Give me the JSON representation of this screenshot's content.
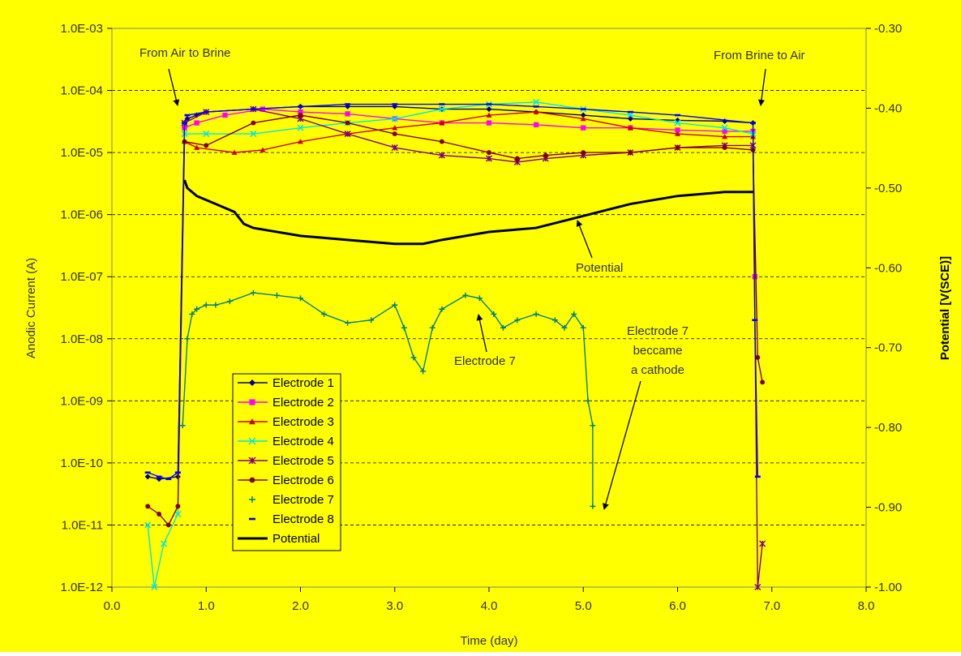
{
  "chart_data": {
    "type": "scatter",
    "title": "",
    "xlabel": "Time (day)",
    "ylabel_left": "Anodic Current  (A)",
    "ylabel_right": "Potential  [V(SCE)]",
    "xlim": [
      0,
      8
    ],
    "ylim_left": [
      1e-12,
      0.001
    ],
    "yscale_left": "log",
    "ylim_right": [
      -1.0,
      -0.3
    ],
    "x_ticks": [
      "0.0",
      "1.0",
      "2.0",
      "3.0",
      "4.0",
      "5.0",
      "6.0",
      "7.0",
      "8.0"
    ],
    "y_left_ticks": [
      "1.0E-03",
      "1.0E-04",
      "1.0E-05",
      "1.0E-06",
      "1.0E-07",
      "1.0E-08",
      "1.0E-09",
      "1.0E-10",
      "1.0E-11",
      "1.0E-12"
    ],
    "y_right_ticks": [
      "-0.30",
      "-0.40",
      "-0.50",
      "-0.60",
      "-0.70",
      "-0.80",
      "-0.90",
      "-1.00"
    ],
    "grid": "horizontal dashed",
    "background": "#ffff00",
    "legend_position": "lower-left",
    "series": [
      {
        "name": "Electrode 1",
        "axis": "left",
        "color": "#00008b",
        "marker": "diamond",
        "x": [
          0.38,
          0.5,
          0.7,
          0.77,
          0.8,
          0.9,
          1.0,
          1.5,
          2.0,
          2.5,
          3.0,
          3.5,
          4.0,
          4.5,
          5.0,
          5.5,
          6.0,
          6.5,
          6.8
        ],
        "y": [
          6e-11,
          5.5e-11,
          6e-11,
          2.5e-05,
          3.5e-05,
          4e-05,
          4.5e-05,
          5e-05,
          5.5e-05,
          5.5e-05,
          5.5e-05,
          5e-05,
          5e-05,
          4.5e-05,
          4e-05,
          3.5e-05,
          3.3e-05,
          3.2e-05,
          3e-05
        ]
      },
      {
        "name": "Electrode 2",
        "axis": "left",
        "color": "#ff00ff",
        "marker": "square",
        "x": [
          0.77,
          0.9,
          1.2,
          1.6,
          2.0,
          2.5,
          3.0,
          3.5,
          4.0,
          4.5,
          5.0,
          5.5,
          6.0,
          6.5,
          6.8,
          6.82
        ],
        "y": [
          2.5e-05,
          3e-05,
          4e-05,
          5e-05,
          4.5e-05,
          4.2e-05,
          3.5e-05,
          3e-05,
          3e-05,
          2.8e-05,
          2.5e-05,
          2.5e-05,
          2.3e-05,
          2.2e-05,
          2.2e-05,
          1e-07
        ]
      },
      {
        "name": "Electrode 3",
        "axis": "left",
        "color": "#cc0000",
        "marker": "triangle",
        "x": [
          0.77,
          0.9,
          1.3,
          1.6,
          2.0,
          2.5,
          3.0,
          3.5,
          4.0,
          4.5,
          5.0,
          5.5,
          6.0,
          6.5,
          6.8
        ],
        "y": [
          1.5e-05,
          1.2e-05,
          1e-05,
          1.1e-05,
          1.5e-05,
          2e-05,
          2.5e-05,
          3e-05,
          4e-05,
          4.5e-05,
          3.5e-05,
          2.5e-05,
          2e-05,
          1.8e-05,
          1.8e-05
        ]
      },
      {
        "name": "Electrode 4",
        "axis": "left",
        "color": "#00e5e5",
        "marker": "x",
        "x": [
          0.38,
          0.45,
          0.55,
          0.7,
          0.77,
          1.0,
          1.5,
          2.0,
          2.5,
          3.0,
          3.5,
          4.0,
          4.5,
          5.0,
          5.5,
          6.0,
          6.5,
          6.8
        ],
        "y": [
          1e-11,
          1e-12,
          5e-12,
          1.5e-11,
          2e-05,
          2e-05,
          2e-05,
          2.5e-05,
          3e-05,
          3.5e-05,
          5e-05,
          6e-05,
          6.5e-05,
          5e-05,
          4e-05,
          3e-05,
          2.5e-05,
          2e-05
        ]
      },
      {
        "name": "Electrode 5",
        "axis": "left",
        "color": "#800080",
        "marker": "star",
        "x": [
          0.77,
          1.0,
          1.5,
          2.0,
          2.5,
          3.0,
          3.5,
          4.0,
          4.3,
          4.6,
          5.0,
          5.5,
          6.0,
          6.5,
          6.8,
          6.85,
          6.9
        ],
        "y": [
          3e-05,
          4.5e-05,
          5e-05,
          3.5e-05,
          2e-05,
          1.2e-05,
          9e-06,
          8e-06,
          7e-06,
          8e-06,
          9e-06,
          1e-05,
          1.2e-05,
          1.3e-05,
          1.3e-05,
          1e-12,
          5e-12
        ]
      },
      {
        "name": "Electrode 6",
        "axis": "left",
        "color": "#800000",
        "marker": "circle",
        "x": [
          0.38,
          0.5,
          0.6,
          0.7,
          0.77,
          1.0,
          1.5,
          2.0,
          2.5,
          3.0,
          3.5,
          4.0,
          4.3,
          4.6,
          5.0,
          5.5,
          6.0,
          6.5,
          6.8,
          6.85,
          6.9
        ],
        "y": [
          2e-11,
          1.5e-11,
          1e-11,
          2e-11,
          1.5e-05,
          1.3e-05,
          3e-05,
          4e-05,
          3e-05,
          2e-05,
          1.5e-05,
          1e-05,
          8e-06,
          9e-06,
          1e-05,
          1e-05,
          1.2e-05,
          1.2e-05,
          1.1e-05,
          5e-09,
          2e-09
        ]
      },
      {
        "name": "Electrode 7",
        "axis": "left",
        "color": "#008080",
        "marker": "plus",
        "x": [
          0.75,
          0.8,
          0.85,
          0.9,
          1.0,
          1.1,
          1.25,
          1.5,
          1.75,
          2.0,
          2.25,
          2.5,
          2.75,
          3.0,
          3.1,
          3.2,
          3.3,
          3.4,
          3.5,
          3.75,
          3.9,
          4.05,
          4.15,
          4.3,
          4.5,
          4.7,
          4.8,
          4.9,
          5.0,
          5.05,
          5.1,
          5.1
        ],
        "y": [
          4e-10,
          1e-08,
          2.5e-08,
          3e-08,
          3.5e-08,
          3.5e-08,
          4e-08,
          5.5e-08,
          5e-08,
          4.5e-08,
          2.5e-08,
          1.8e-08,
          2e-08,
          3.5e-08,
          1.5e-08,
          5e-09,
          3e-09,
          1.5e-08,
          3e-08,
          5e-08,
          4.5e-08,
          2.5e-08,
          1.5e-08,
          2e-08,
          2.5e-08,
          2e-08,
          1.5e-08,
          2.5e-08,
          1.5e-08,
          1e-09,
          4e-10,
          2e-11
        ]
      },
      {
        "name": "Electrode 8",
        "axis": "left",
        "color": "#0000ff",
        "marker": "dash",
        "x": [
          0.38,
          0.5,
          0.6,
          0.7,
          0.77,
          0.8,
          1.0,
          1.5,
          2.0,
          2.5,
          3.0,
          3.5,
          4.0,
          4.5,
          5.0,
          5.5,
          6.0,
          6.8,
          6.82,
          6.85
        ],
        "y": [
          7e-11,
          6e-11,
          5.5e-11,
          7e-11,
          3e-05,
          4e-05,
          4.5e-05,
          5e-05,
          5.5e-05,
          6e-05,
          6e-05,
          6e-05,
          6e-05,
          5.5e-05,
          5e-05,
          4.5e-05,
          4e-05,
          3e-05,
          2e-08,
          6e-11
        ]
      },
      {
        "name": "Potential",
        "axis": "right",
        "color": "#000000",
        "marker": "line",
        "x": [
          0.77,
          0.8,
          0.9,
          1.0,
          1.1,
          1.3,
          1.4,
          1.5,
          2.0,
          2.5,
          3.0,
          3.3,
          3.5,
          4.0,
          4.5,
          5.0,
          5.5,
          6.0,
          6.5,
          6.8
        ],
        "y": [
          -0.49,
          -0.5,
          -0.51,
          -0.515,
          -0.52,
          -0.53,
          -0.545,
          -0.55,
          -0.56,
          -0.565,
          -0.57,
          -0.57,
          -0.565,
          -0.555,
          -0.55,
          -0.535,
          -0.52,
          -0.51,
          -0.505,
          -0.505
        ]
      }
    ],
    "annotations": [
      {
        "text": "From Air to Brine"
      },
      {
        "text": "From Brine to Air"
      },
      {
        "text": "Potential"
      },
      {
        "text": "Electrode 7"
      },
      {
        "lines": [
          "Electrode 7",
          "beccame",
          "a cathode"
        ]
      }
    ]
  }
}
